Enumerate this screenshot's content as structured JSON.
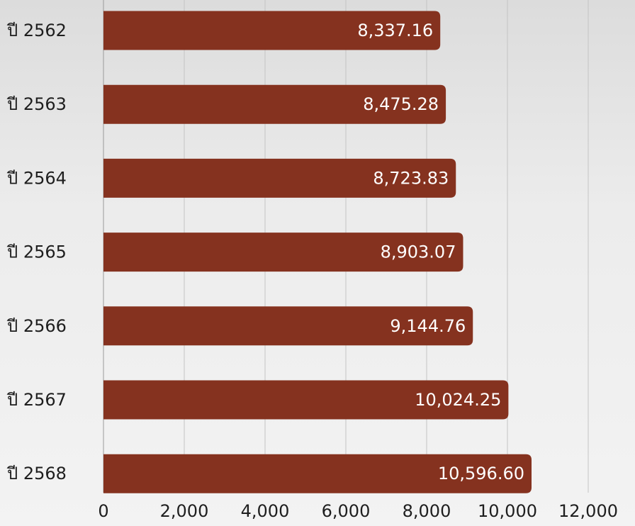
{
  "chart_data": {
    "type": "barh",
    "categories": [
      "ปี 2562",
      "ปี 2563",
      "ปี 2564",
      "ปี 2565",
      "ปี 2566",
      "ปี 2567",
      "ปี 2568"
    ],
    "values": [
      8337.16,
      8475.28,
      8723.83,
      8903.07,
      9144.76,
      10024.25,
      10596.6
    ],
    "value_labels": [
      "8,337.16",
      "8,475.28",
      "8,723.83",
      "8,903.07",
      "9,144.76",
      "10,024.25",
      "10,596.60"
    ],
    "color": "#85321f",
    "xlim": [
      0,
      12000
    ],
    "xticks": [
      0,
      {
        "value": 2000,
        "label": "2,000"
      },
      {
        "value": 4000,
        "label": "4,000"
      },
      {
        "value": 6000,
        "label": "6,000"
      },
      {
        "value": 8000,
        "label": "8,000"
      },
      {
        "value": 10000,
        "label": "10,000"
      },
      {
        "value": 12000,
        "label": "12,000"
      }
    ],
    "grid": true
  }
}
